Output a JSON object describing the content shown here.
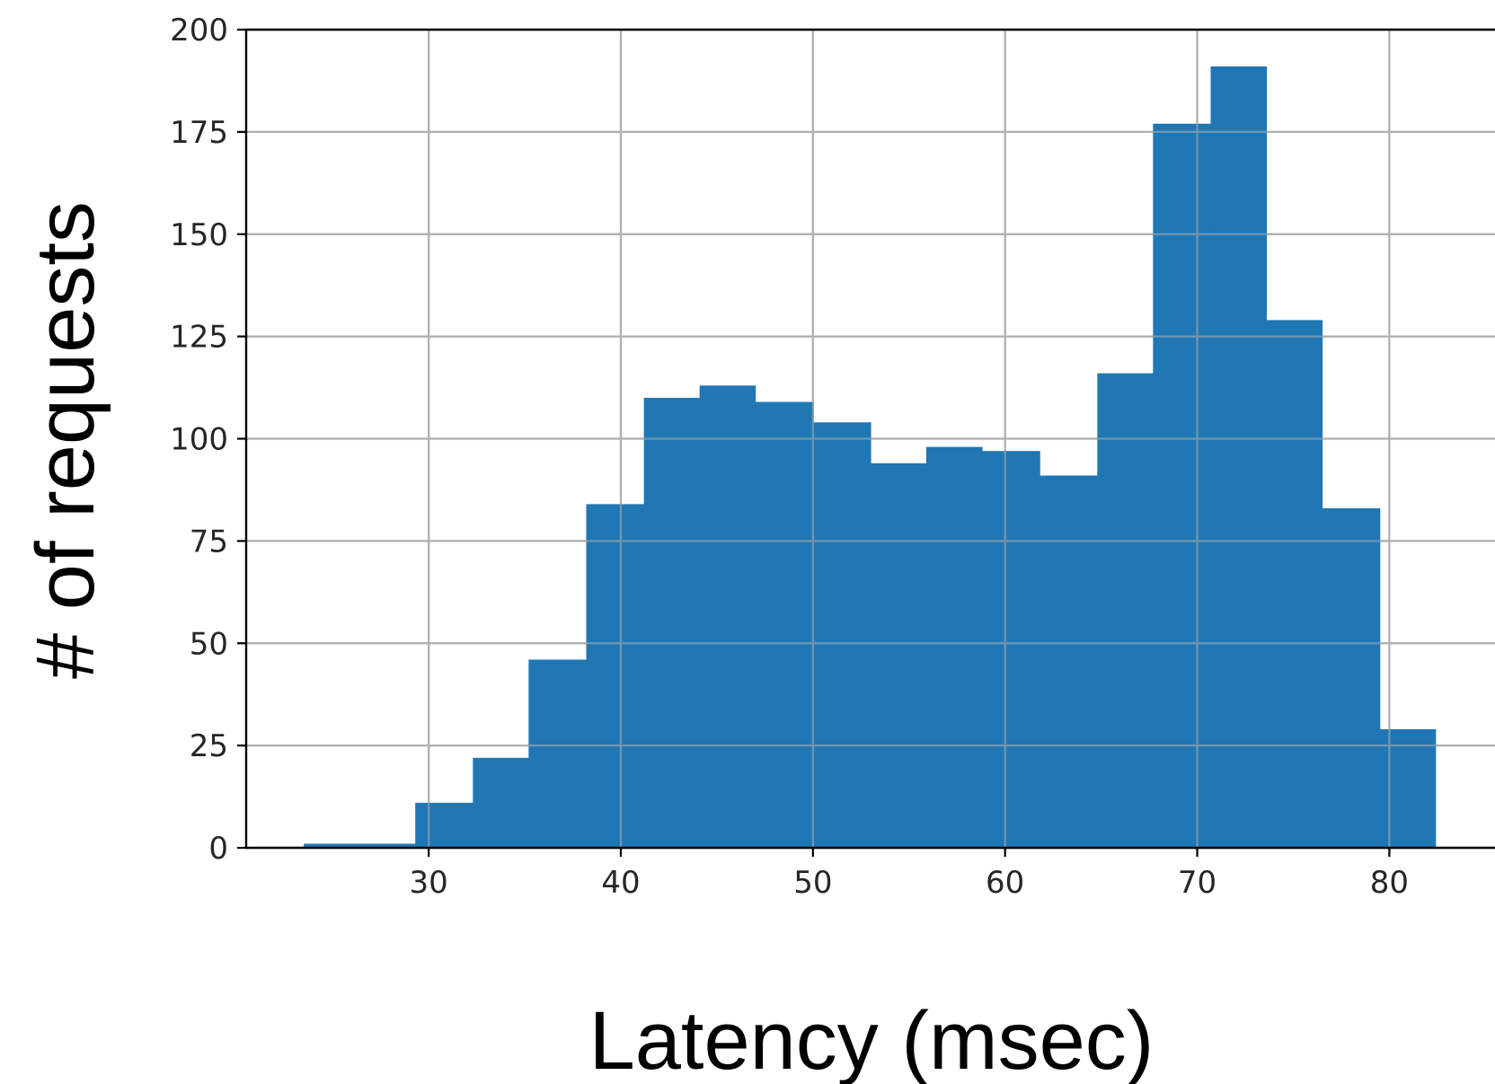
{
  "chart_data": {
    "type": "bar",
    "title": "",
    "xlabel": "Latency (msec)",
    "ylabel": "# of requests",
    "xlim": [
      20.5,
      85.5
    ],
    "ylim": [
      0,
      200
    ],
    "xticks": [
      30,
      40,
      50,
      60,
      70,
      80
    ],
    "yticks": [
      0,
      25,
      50,
      75,
      100,
      125,
      150,
      175,
      200
    ],
    "grid": true,
    "bar_color": "#2077b4",
    "bins": [
      {
        "x0": 23.5,
        "x1": 26.4,
        "value": 1
      },
      {
        "x0": 26.4,
        "x1": 29.3,
        "value": 1
      },
      {
        "x0": 29.3,
        "x1": 32.3,
        "value": 11
      },
      {
        "x0": 32.3,
        "x1": 35.2,
        "value": 22
      },
      {
        "x0": 35.2,
        "x1": 38.2,
        "value": 46
      },
      {
        "x0": 38.2,
        "x1": 41.2,
        "value": 84
      },
      {
        "x0": 41.2,
        "x1": 44.1,
        "value": 110
      },
      {
        "x0": 44.1,
        "x1": 47.0,
        "value": 113
      },
      {
        "x0": 47.0,
        "x1": 50.0,
        "value": 109
      },
      {
        "x0": 50.0,
        "x1": 53.0,
        "value": 104
      },
      {
        "x0": 53.0,
        "x1": 55.9,
        "value": 94
      },
      {
        "x0": 55.9,
        "x1": 58.8,
        "value": 98
      },
      {
        "x0": 58.8,
        "x1": 61.8,
        "value": 97
      },
      {
        "x0": 61.8,
        "x1": 64.8,
        "value": 91
      },
      {
        "x0": 64.8,
        "x1": 67.7,
        "value": 116
      },
      {
        "x0": 67.7,
        "x1": 70.7,
        "value": 177
      },
      {
        "x0": 70.7,
        "x1": 73.6,
        "value": 191
      },
      {
        "x0": 73.6,
        "x1": 76.5,
        "value": 129
      },
      {
        "x0": 76.5,
        "x1": 79.5,
        "value": 83
      },
      {
        "x0": 79.5,
        "x1": 82.4,
        "value": 29
      }
    ]
  }
}
